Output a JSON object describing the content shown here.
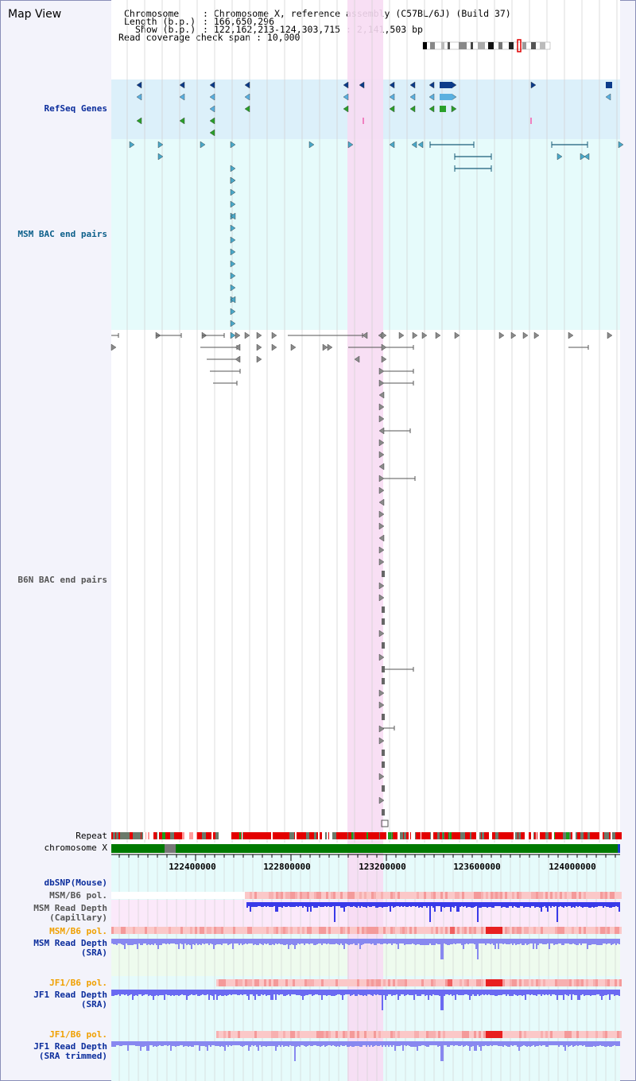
{
  "page": {
    "title": "Map View"
  },
  "info": {
    "chromosome_key": "Chromosome",
    "chromosome_val": ": Chromosome X, reference assembly (C57BL/6J) (Build 37)",
    "length_key": "Length (b.p.)",
    "length_val": ": 166,650,296",
    "show_key": "Show (b.p.)",
    "show_val": ": 122,162,213-124,303,715 : 2,141,503 bp",
    "span_line": "Read coverage check span : 10,000"
  },
  "tracks": {
    "refseq": "RefSeq Genes",
    "msm_bac": "MSM BAC end pairs",
    "b6n_bac": "B6N BAC end pairs",
    "repeat": "Repeat",
    "chromosome": "chromosome X",
    "dbsnp": "dbSNP(Mouse)",
    "msm_b6_pol_1": "MSM/B6 pol.",
    "msm_depth_cap_1": "MSM Read Depth",
    "msm_depth_cap_2": "(Capillary)",
    "msm_b6_pol_2": "MSM/B6 pol.",
    "msm_depth_sra_1": "MSM Read Depth",
    "msm_depth_sra_2": "(SRA)",
    "jf1_b6_pol_1": "JF1/B6 pol.",
    "jf1_depth_sra_1": "JF1 Read Depth",
    "jf1_depth_sra_2": "(SRA)",
    "jf1_b6_pol_2": "JF1/B6 pol.",
    "jf1_depth_trim_1": "JF1 Read Depth",
    "jf1_depth_trim_2": "(SRA trimmed)"
  },
  "axis": {
    "ticks": [
      "122400000",
      "122800000",
      "123200000",
      "123600000",
      "124000000"
    ]
  },
  "colors": {
    "highlight": "#f7dcf3",
    "refseq_bg": "#dcf0fa",
    "bac_bg": "#e6fbfb",
    "chromosome_bar": "#007a00",
    "repeat_red": "#e30000",
    "depth_blue": "#5a5ef0",
    "pol_red": "#f06060"
  }
}
